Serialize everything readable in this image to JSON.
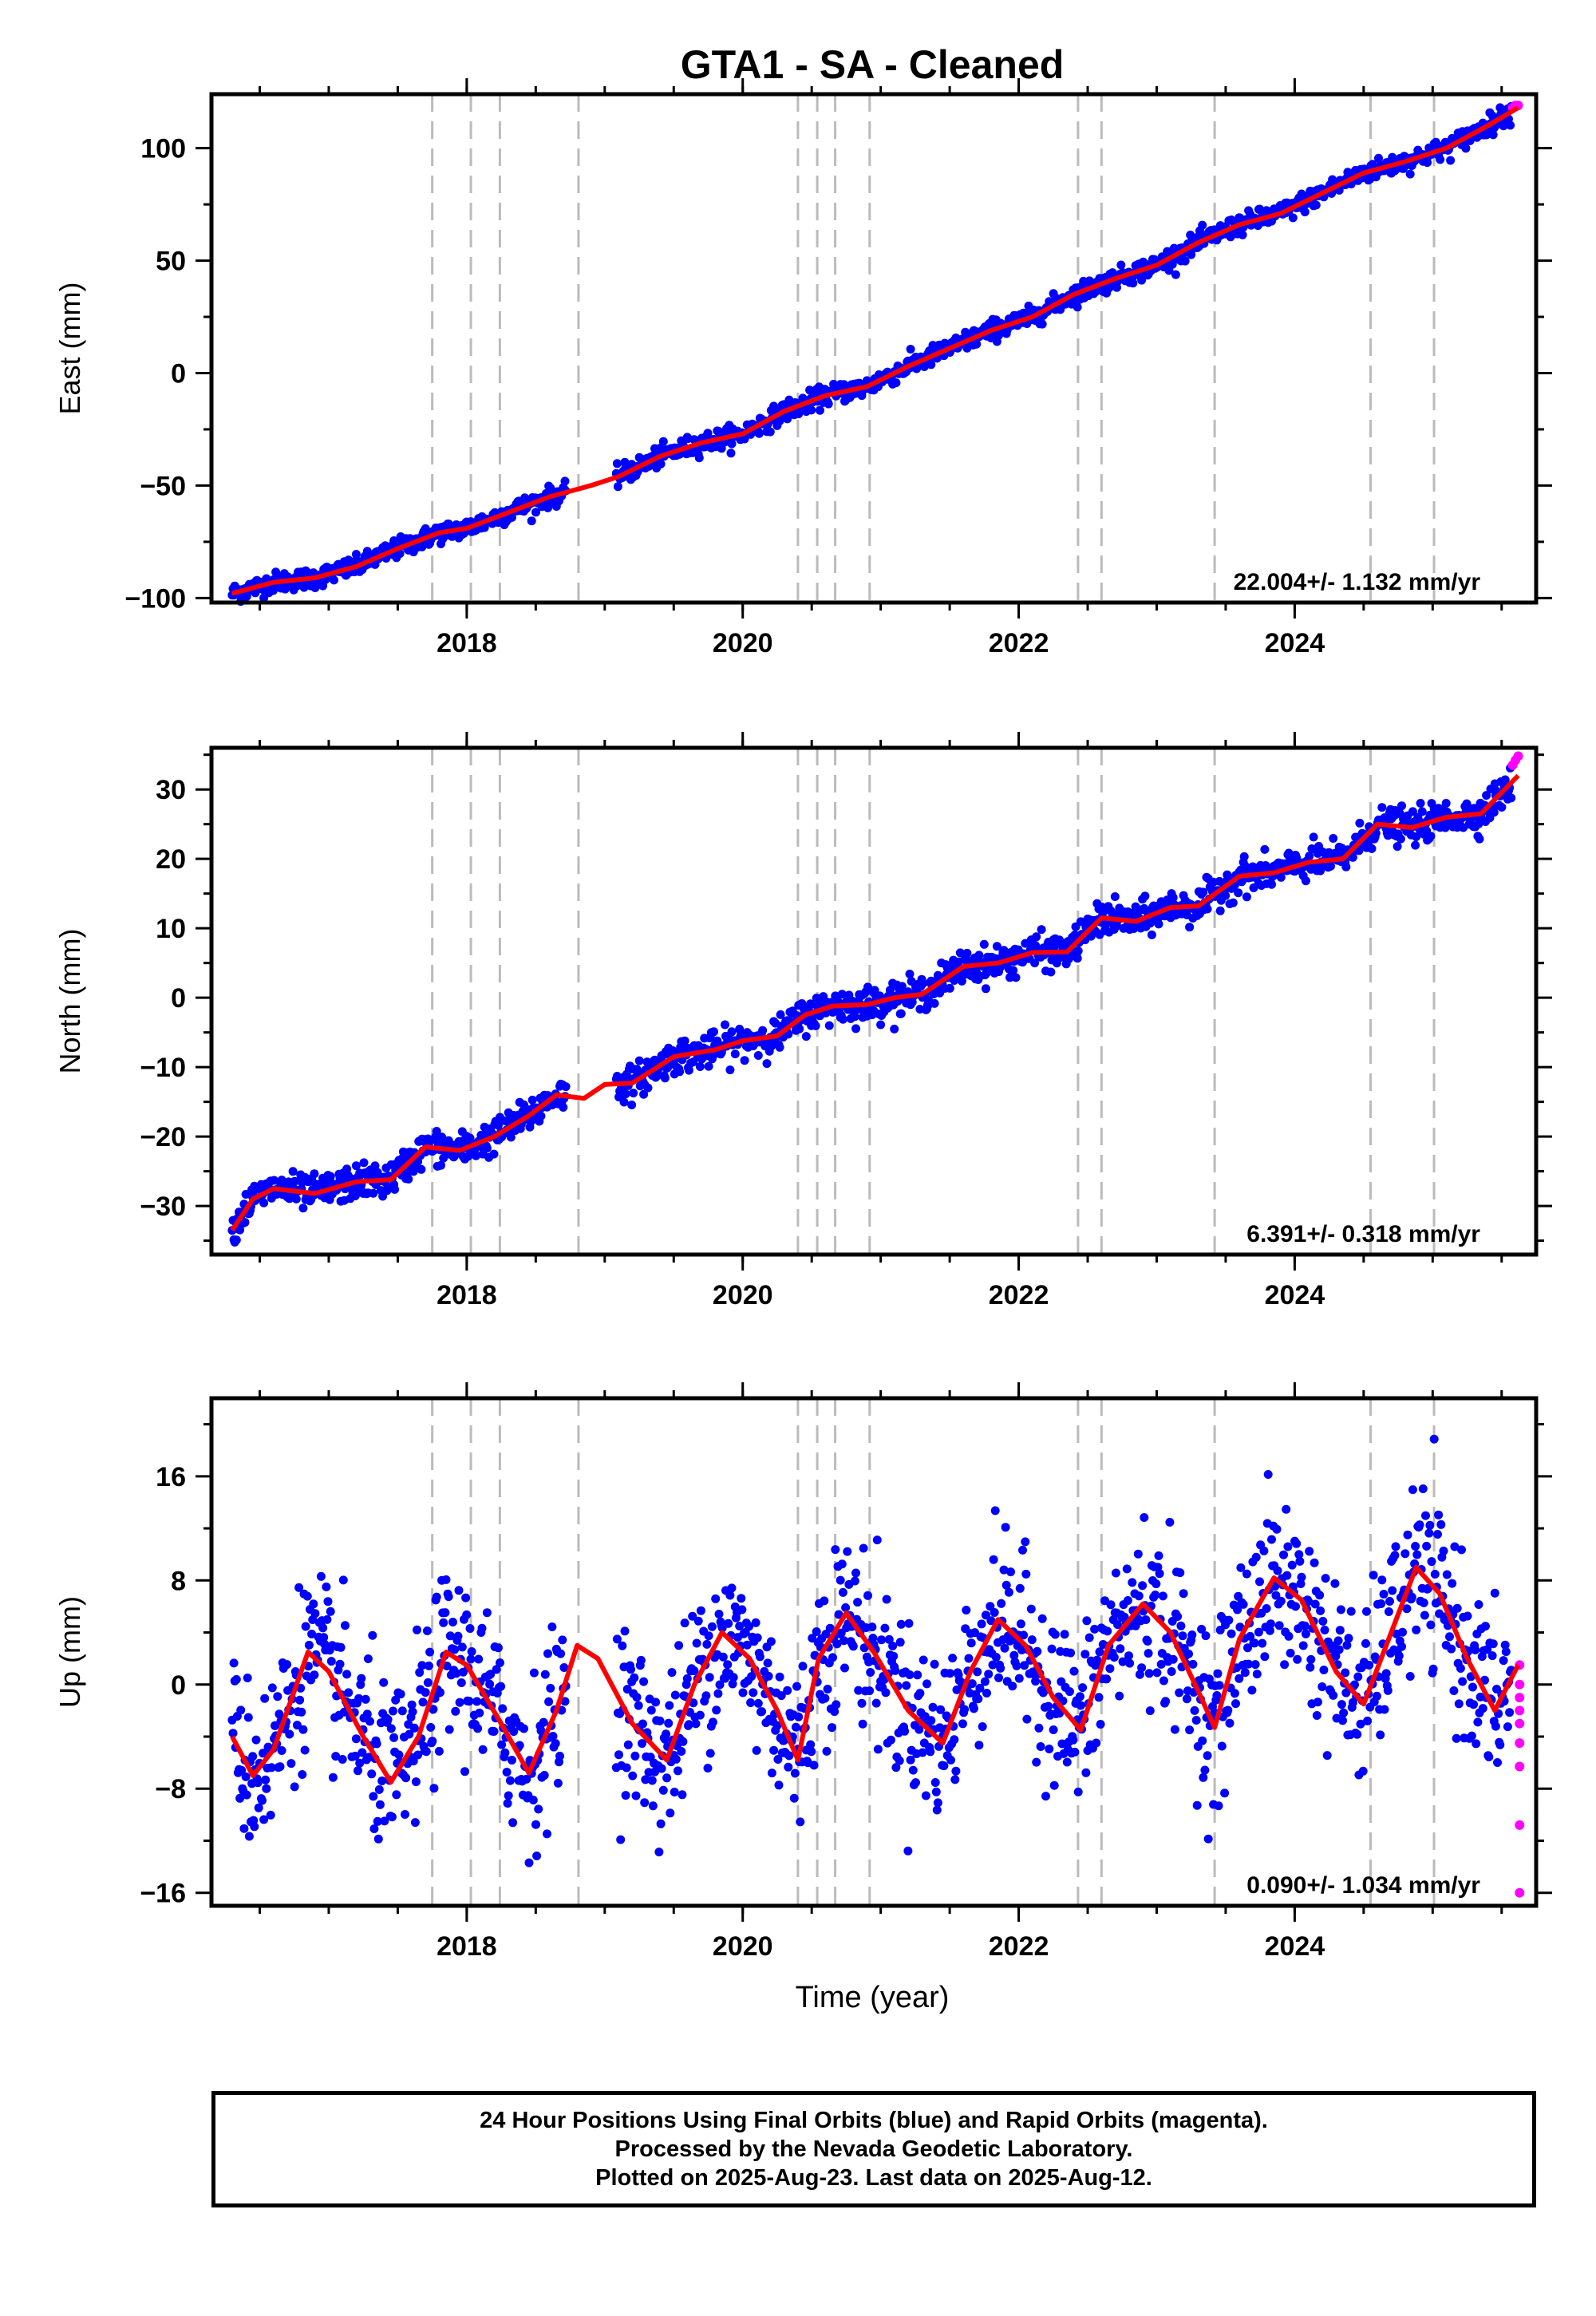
{
  "title": "GTA1  - SA - Cleaned",
  "xlabel": "Time (year)",
  "footer": {
    "line1": "24 Hour Positions Using Final Orbits (blue) and Rapid Orbits (magenta).",
    "line2": "Processed by the Nevada Geodetic Laboratory.",
    "line3": "Plotted on 2025-Aug-23. Last data on 2025-Aug-12."
  },
  "colors": {
    "final": "#0000ff",
    "rapid": "#ff00ff",
    "model": "#ff0000",
    "events": "#bbbbbb"
  },
  "chart_data": [
    {
      "type": "scatter",
      "component": "east",
      "ylabel": "East (mm)",
      "rate_text": "22.004+/- 1.132 mm/yr",
      "xlim": [
        2016.15,
        2025.75
      ],
      "ylim": [
        -102,
        124
      ],
      "xticks": [
        2018,
        2020,
        2022,
        2024
      ],
      "yticks": [
        -100,
        -50,
        0,
        50,
        100
      ],
      "events": [
        2017.75,
        2018.03,
        2018.24,
        2018.81,
        2020.4,
        2020.54,
        2020.67,
        2020.92,
        2022.43,
        2022.6,
        2023.42,
        2024.55,
        2025.01
      ],
      "gap": [
        2018.72,
        2019.08
      ],
      "model": [
        [
          2016.3,
          -98
        ],
        [
          2016.6,
          -93
        ],
        [
          2016.9,
          -91
        ],
        [
          2017.2,
          -86
        ],
        [
          2017.5,
          -78
        ],
        [
          2017.8,
          -71
        ],
        [
          2018.0,
          -69
        ],
        [
          2018.3,
          -62
        ],
        [
          2018.6,
          -55
        ],
        [
          2018.9,
          -50
        ],
        [
          2019.1,
          -46
        ],
        [
          2019.4,
          -37
        ],
        [
          2019.7,
          -31
        ],
        [
          2020.0,
          -27
        ],
        [
          2020.3,
          -17
        ],
        [
          2020.6,
          -10
        ],
        [
          2020.9,
          -6
        ],
        [
          2021.2,
          3
        ],
        [
          2021.5,
          11
        ],
        [
          2021.8,
          19
        ],
        [
          2022.1,
          25
        ],
        [
          2022.4,
          35
        ],
        [
          2022.7,
          42
        ],
        [
          2023.0,
          48
        ],
        [
          2023.3,
          58
        ],
        [
          2023.6,
          66
        ],
        [
          2023.9,
          71
        ],
        [
          2024.2,
          80
        ],
        [
          2024.5,
          89
        ],
        [
          2024.8,
          94
        ],
        [
          2025.1,
          100
        ],
        [
          2025.4,
          110
        ],
        [
          2025.62,
          118
        ]
      ],
      "noise": 2.2,
      "rapid": [
        [
          2025.58,
          118
        ],
        [
          2025.6,
          119
        ],
        [
          2025.62,
          119
        ]
      ]
    },
    {
      "type": "scatter",
      "component": "north",
      "ylabel": "North (mm)",
      "rate_text": "6.391+/- 0.318 mm/yr",
      "xlim": [
        2016.15,
        2025.75
      ],
      "ylim": [
        -37,
        36
      ],
      "xticks": [
        2018,
        2020,
        2022,
        2024
      ],
      "yticks": [
        -30,
        -20,
        -10,
        0,
        10,
        20,
        30
      ],
      "events": [
        2017.75,
        2018.03,
        2018.24,
        2018.81,
        2020.4,
        2020.54,
        2020.67,
        2020.92,
        2022.43,
        2022.6,
        2023.42,
        2024.55,
        2025.01
      ],
      "gap": [
        2018.72,
        2019.08
      ],
      "model": [
        [
          2016.3,
          -33.5
        ],
        [
          2016.45,
          -29
        ],
        [
          2016.6,
          -27.5
        ],
        [
          2016.9,
          -28.2
        ],
        [
          2017.2,
          -26.5
        ],
        [
          2017.45,
          -26.2
        ],
        [
          2017.7,
          -21.5
        ],
        [
          2017.95,
          -22
        ],
        [
          2018.2,
          -20
        ],
        [
          2018.45,
          -17
        ],
        [
          2018.65,
          -14
        ],
        [
          2018.85,
          -14.5
        ],
        [
          2019.0,
          -12.5
        ],
        [
          2019.2,
          -12.3
        ],
        [
          2019.5,
          -8.5
        ],
        [
          2019.8,
          -7.5
        ],
        [
          2020.0,
          -6.2
        ],
        [
          2020.25,
          -5.5
        ],
        [
          2020.45,
          -2.5
        ],
        [
          2020.65,
          -1.2
        ],
        [
          2020.9,
          -1
        ],
        [
          2021.1,
          0
        ],
        [
          2021.3,
          0.5
        ],
        [
          2021.6,
          4.5
        ],
        [
          2021.85,
          5
        ],
        [
          2022.1,
          6.5
        ],
        [
          2022.35,
          6.6
        ],
        [
          2022.6,
          11.5
        ],
        [
          2022.85,
          11
        ],
        [
          2023.1,
          13
        ],
        [
          2023.3,
          13.2
        ],
        [
          2023.6,
          17.5
        ],
        [
          2023.85,
          18
        ],
        [
          2024.1,
          19.5
        ],
        [
          2024.35,
          20
        ],
        [
          2024.6,
          25
        ],
        [
          2024.85,
          24.5
        ],
        [
          2025.1,
          26
        ],
        [
          2025.35,
          26.5
        ],
        [
          2025.62,
          32
        ]
      ],
      "noise": 1.2,
      "rapid": [
        [
          2025.58,
          33.5
        ],
        [
          2025.6,
          34.2
        ],
        [
          2025.62,
          34.8
        ]
      ]
    },
    {
      "type": "scatter",
      "component": "up",
      "ylabel": "Up (mm)",
      "rate_text": "0.090+/- 1.034 mm/yr",
      "xlim": [
        2016.15,
        2025.75
      ],
      "ylim": [
        -17,
        22
      ],
      "xticks": [
        2018,
        2020,
        2022,
        2024
      ],
      "yticks": [
        -16,
        -8,
        0,
        8,
        16
      ],
      "events": [
        2017.75,
        2018.03,
        2018.24,
        2018.81,
        2020.4,
        2020.54,
        2020.67,
        2020.92,
        2022.43,
        2022.6,
        2023.42,
        2024.55,
        2025.01
      ],
      "gap": [
        2018.72,
        2019.08
      ],
      "model": [
        [
          2016.3,
          -4
        ],
        [
          2016.45,
          -7
        ],
        [
          2016.6,
          -5
        ],
        [
          2016.85,
          2.5
        ],
        [
          2017.0,
          1
        ],
        [
          2017.25,
          -4
        ],
        [
          2017.45,
          -7.5
        ],
        [
          2017.65,
          -4
        ],
        [
          2017.85,
          2.5
        ],
        [
          2018.0,
          1.5
        ],
        [
          2018.25,
          -3
        ],
        [
          2018.45,
          -6.8
        ],
        [
          2018.65,
          -2
        ],
        [
          2018.8,
          3
        ],
        [
          2018.95,
          2
        ],
        [
          2019.2,
          -3
        ],
        [
          2019.45,
          -5.8
        ],
        [
          2019.65,
          0
        ],
        [
          2019.85,
          4
        ],
        [
          2020.05,
          2
        ],
        [
          2020.25,
          -2
        ],
        [
          2020.4,
          -5.8
        ],
        [
          2020.55,
          2
        ],
        [
          2020.75,
          5.5
        ],
        [
          2020.95,
          2.5
        ],
        [
          2021.2,
          -2
        ],
        [
          2021.45,
          -4.5
        ],
        [
          2021.65,
          1
        ],
        [
          2021.85,
          5
        ],
        [
          2022.05,
          3
        ],
        [
          2022.25,
          -1
        ],
        [
          2022.45,
          -3.5
        ],
        [
          2022.65,
          3
        ],
        [
          2022.9,
          6.2
        ],
        [
          2023.1,
          4
        ],
        [
          2023.3,
          -0.5
        ],
        [
          2023.42,
          -3.3
        ],
        [
          2023.6,
          3.5
        ],
        [
          2023.85,
          8.2
        ],
        [
          2024.05,
          6.5
        ],
        [
          2024.3,
          1
        ],
        [
          2024.5,
          -1.5
        ],
        [
          2024.7,
          4
        ],
        [
          2024.88,
          9
        ],
        [
          2025.05,
          7
        ],
        [
          2025.25,
          2
        ],
        [
          2025.45,
          -2
        ],
        [
          2025.62,
          1.5
        ]
      ],
      "noise": 3.2,
      "rapid": [
        [
          2025.63,
          1.5
        ],
        [
          2025.63,
          0
        ],
        [
          2025.63,
          -1
        ],
        [
          2025.63,
          -2
        ],
        [
          2025.63,
          -3
        ],
        [
          2025.63,
          -4.5
        ],
        [
          2025.63,
          -6.3
        ],
        [
          2025.63,
          -10.8
        ],
        [
          2025.63,
          -16
        ]
      ]
    }
  ]
}
